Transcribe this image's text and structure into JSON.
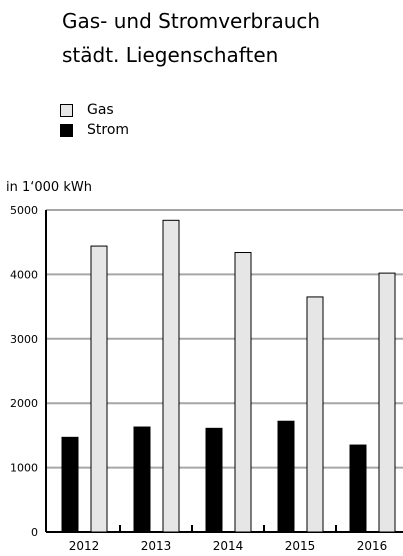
{
  "title_lines": [
    "Gas- und Stromverbrauch",
    "städt. Liegenschaften"
  ],
  "unit_label": "in 1‘000 kWh",
  "legend": [
    {
      "label": "Gas",
      "color": "#e6e6e6"
    },
    {
      "label": "Strom",
      "color": "#000000"
    }
  ],
  "chart_data": {
    "type": "bar",
    "categories": [
      "2012",
      "2013",
      "2014",
      "2015",
      "2016"
    ],
    "series": [
      {
        "name": "Strom",
        "values": [
          1470,
          1630,
          1610,
          1720,
          1350
        ],
        "color": "#000000"
      },
      {
        "name": "Gas",
        "values": [
          4440,
          4840,
          4340,
          3650,
          4020
        ],
        "color": "#e6e6e6"
      }
    ],
    "ylim": [
      0,
      5000
    ],
    "yticks": [
      0,
      1000,
      2000,
      3000,
      4000,
      5000
    ],
    "ytick_labels": [
      "0",
      "1000",
      "2000",
      "3000",
      "4000",
      "5000"
    ],
    "grid": true,
    "legend_position": "top-left"
  }
}
